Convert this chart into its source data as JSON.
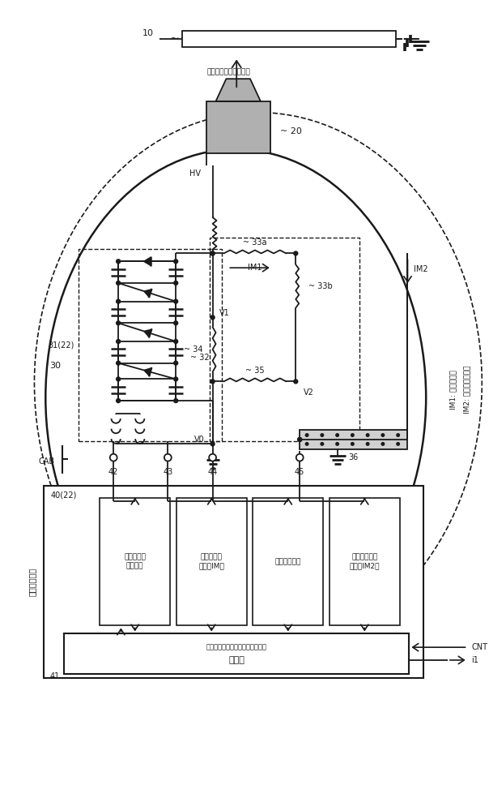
{
  "bg_color": "#ffffff",
  "line_color": "#1a1a1a",
  "gray_fill": "#b0b0b0",
  "dot_fill": "#d0d0d0",
  "labels": {
    "workpiece_label": "被涂物（涂装对象物）",
    "num10": "10",
    "num20": "20",
    "num30": "30",
    "num31": "31(22)",
    "num32": "32",
    "num33a": "33a",
    "num33b": "33b",
    "num34": "34",
    "num35": "35",
    "num36": "36",
    "num40": "40(22)",
    "num41": "41",
    "num42": "42",
    "num43": "43",
    "num44": "44",
    "num45": "45",
    "HV": "HV",
    "V0": "V0",
    "V1": "V1",
    "V2": "V2",
    "IM1": "IM1",
    "IM2": "IM2",
    "CAB": "CAB",
    "high_ctrl": "高电压控制器",
    "box1": "高电压生成\n控制单元",
    "box2": "总电流测量\n单元（IM）",
    "box3": "电压测量单元",
    "box4": "泄漏电流测量\n单元（IM2）",
    "cpu_sub": "（与未图示的涂装控制装置连接）",
    "cpu": "处理器",
    "CNT": "CNT",
    "i1": "i1",
    "im1_desc": "IM1: 分压器电流",
    "im2_desc": "IM2: 后板侧泄漏电流"
  }
}
